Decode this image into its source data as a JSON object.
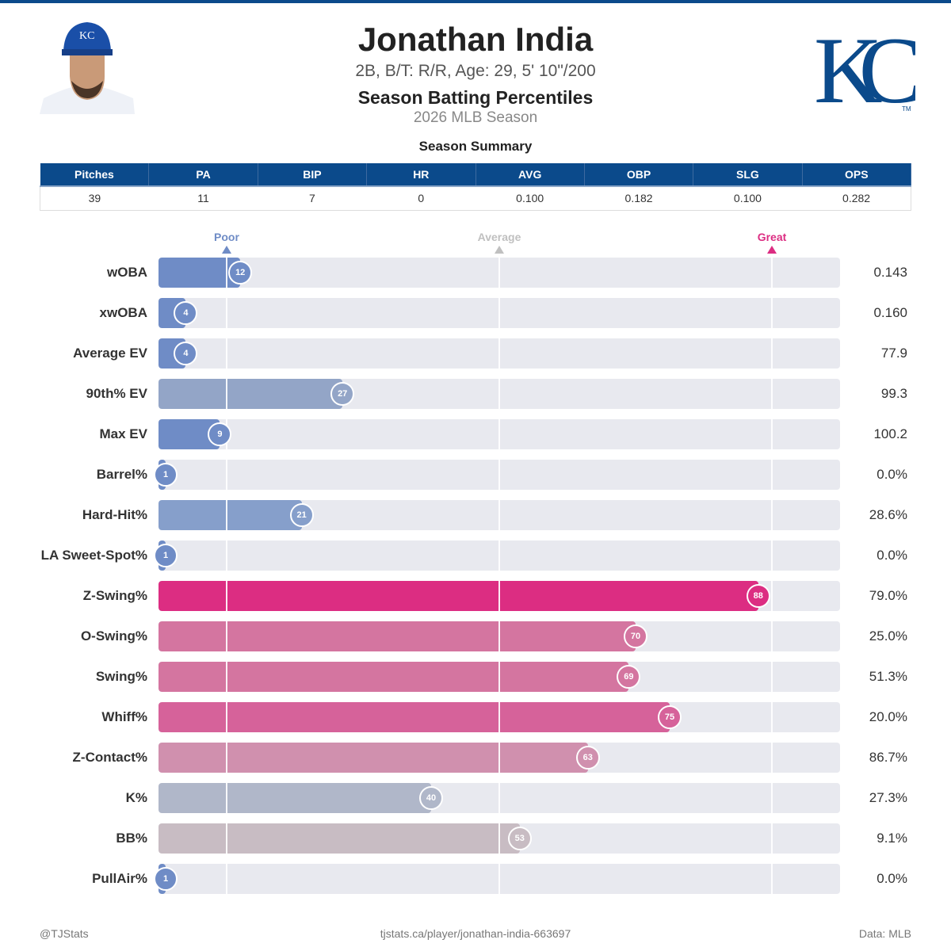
{
  "header": {
    "name": "Jonathan India",
    "info": "2B, B/T: R/R, Age: 29, 5' 10\"/200",
    "title": "Season Batting Percentiles",
    "season": "2026 MLB Season",
    "team_logo": "KC"
  },
  "summary": {
    "title": "Season Summary",
    "columns": [
      "Pitches",
      "PA",
      "BIP",
      "HR",
      "AVG",
      "OBP",
      "SLG",
      "OPS"
    ],
    "values": [
      "39",
      "11",
      "7",
      "0",
      "0.100",
      "0.182",
      "0.100",
      "0.282"
    ]
  },
  "chart_data": {
    "type": "bar",
    "orientation": "horizontal",
    "xlim": [
      0,
      100
    ],
    "reference_markers": [
      {
        "label": "Poor",
        "value": 10,
        "color": "#6f8cc6"
      },
      {
        "label": "Average",
        "value": 50,
        "color": "#c0c0c0"
      },
      {
        "label": "Great",
        "value": 90,
        "color": "#dc2d82"
      }
    ],
    "categories": [
      "wOBA",
      "xwOBA",
      "Average EV",
      "90th% EV",
      "Max EV",
      "Barrel%",
      "Hard-Hit%",
      "LA Sweet-Spot%",
      "Z-Swing%",
      "O-Swing%",
      "Swing%",
      "Whiff%",
      "Z-Contact%",
      "K%",
      "BB%",
      "PullAir%"
    ],
    "percentiles": [
      12,
      4,
      4,
      27,
      9,
      1,
      21,
      1,
      88,
      70,
      69,
      75,
      63,
      40,
      53,
      1
    ],
    "values": [
      "0.143",
      "0.160",
      "77.9",
      "99.3",
      "100.2",
      "0.0%",
      "28.6%",
      "0.0%",
      "79.0%",
      "25.0%",
      "51.3%",
      "20.0%",
      "86.7%",
      "27.3%",
      "9.1%",
      "0.0%"
    ],
    "colors": [
      "#6f8cc6",
      "#6f8cc6",
      "#6f8cc6",
      "#93a5c7",
      "#6f8cc6",
      "#6f8cc6",
      "#869fcb",
      "#6f8cc6",
      "#dc2d82",
      "#d475a0",
      "#d475a0",
      "#d6629a",
      "#d090ae",
      "#b0b7c9",
      "#c8bcc3",
      "#6f8cc6"
    ]
  },
  "footer": {
    "left": "@TJStats",
    "center": "tjstats.ca/player/jonathan-india-663697",
    "right": "Data: MLB"
  }
}
